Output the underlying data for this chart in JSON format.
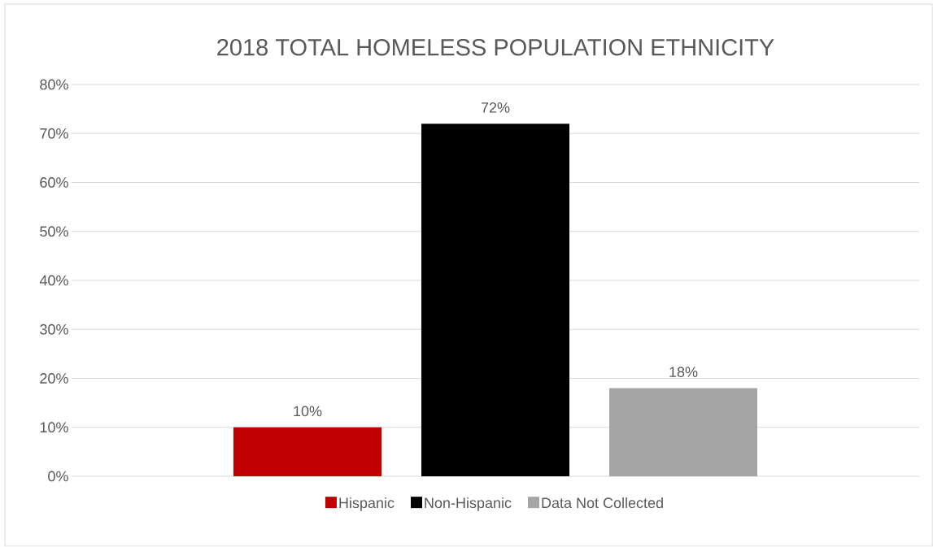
{
  "chart_data": {
    "type": "bar",
    "title": "2018 TOTAL HOMELESS POPULATION ETHNICITY",
    "categories": [
      null
    ],
    "series": [
      {
        "name": "Hispanic",
        "color": "#c00000",
        "values": [
          10
        ],
        "value_labels": [
          "10%"
        ]
      },
      {
        "name": "Non-Hispanic",
        "color": "#000000",
        "values": [
          72
        ],
        "value_labels": [
          "72%"
        ]
      },
      {
        "name": "Data Not Collected",
        "color": "#a5a5a5",
        "values": [
          18
        ],
        "value_labels": [
          "18%"
        ]
      }
    ],
    "ylim": [
      0,
      80
    ],
    "yticks": [
      {
        "value": 0,
        "label": "0%"
      },
      {
        "value": 10,
        "label": "10%"
      },
      {
        "value": 20,
        "label": "20%"
      },
      {
        "value": 30,
        "label": "30%"
      },
      {
        "value": 40,
        "label": "40%"
      },
      {
        "value": 50,
        "label": "50%"
      },
      {
        "value": 60,
        "label": "60%"
      },
      {
        "value": 70,
        "label": "70%"
      },
      {
        "value": 80,
        "label": "80%"
      }
    ],
    "grid": "y",
    "legend": "bottom"
  }
}
